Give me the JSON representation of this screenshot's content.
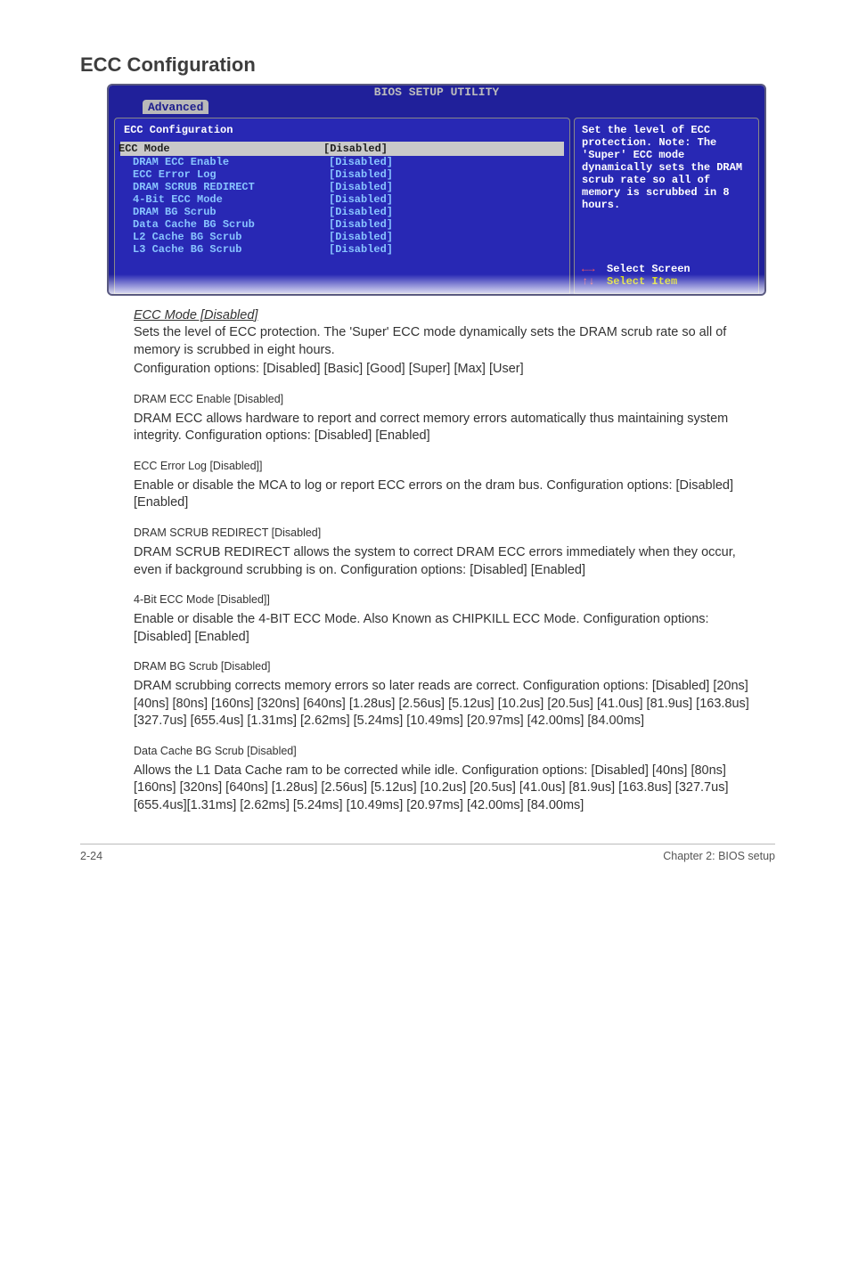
{
  "section_title": "ECC Configuration",
  "bios": {
    "titlebar": "BIOS SETUP UTILITY",
    "tab": "Advanced",
    "left_header": "ECC Configuration",
    "selected": {
      "label": "ECC Mode",
      "value": "[Disabled]"
    },
    "rows": [
      {
        "label": "DRAM ECC Enable",
        "value": "[Disabled]"
      },
      {
        "label": "ECC Error Log",
        "value": "[Disabled]"
      },
      {
        "label": "DRAM SCRUB REDIRECT",
        "value": "[Disabled]"
      },
      {
        "label": "4-Bit ECC Mode",
        "value": "[Disabled]"
      },
      {
        "label": "DRAM BG Scrub",
        "value": "[Disabled]"
      },
      {
        "label": "Data Cache BG Scrub",
        "value": "[Disabled]"
      },
      {
        "label": "L2 Cache BG Scrub",
        "value": "[Disabled]"
      },
      {
        "label": "L3 Cache BG Scrub",
        "value": "[Disabled]"
      }
    ],
    "help": "Set the level of ECC protection. Note: The 'Super' ECC mode dynamically sets the DRAM scrub rate so all of memory is scrubbed in 8 hours.",
    "nav1_arrow": "←→",
    "nav1_text": "Select Screen",
    "nav2_arrow": "↑↓",
    "nav2_text": "Select Item"
  },
  "main_item": {
    "title": "ECC Mode [Disabled]",
    "p1": "Sets the level of ECC protection. The 'Super' ECC mode dynamically sets the DRAM scrub rate so all of memory is scrubbed in eight hours.",
    "p2": "Configuration options: [Disabled] [Basic] [Good] [Super] [Max] [User]"
  },
  "subs": [
    {
      "title": "DRAM ECC Enable [Disabled]",
      "body": "DRAM ECC allows hardware to report and correct memory errors automatically thus maintaining system integrity. Configuration options: [Disabled] [Enabled]"
    },
    {
      "title": "ECC Error Log [Disabled]]",
      "body": "Enable or disable the MCA to log or report ECC errors on the dram bus. Configuration options: [Disabled] [Enabled]"
    },
    {
      "title": "DRAM SCRUB REDIRECT [Disabled]",
      "body": "DRAM SCRUB REDIRECT allows the system to correct DRAM ECC errors immediately when they occur, even if background scrubbing is on. Configuration options: [Disabled] [Enabled]"
    },
    {
      "title": "4-Bit ECC Mode [Disabled]]",
      "body": "Enable or disable the 4-BIT ECC Mode. Also Known as CHIPKILL ECC Mode. Configuration options: [Disabled] [Enabled]"
    },
    {
      "title": "DRAM BG Scrub [Disabled]",
      "body": "DRAM scrubbing corrects memory errors so later reads are correct. Configuration options: [Disabled] [20ns] [40ns] [80ns] [160ns] [320ns] [640ns] [1.28us] [2.56us] [5.12us] [10.2us] [20.5us] [41.0us] [81.9us] [163.8us] [327.7us] [655.4us] [1.31ms] [2.62ms] [5.24ms] [10.49ms] [20.97ms] [42.00ms] [84.00ms]"
    },
    {
      "title": "Data Cache BG Scrub [Disabled]",
      "body": "Allows the L1 Data Cache ram to be corrected while idle. Configuration options: [Disabled] [40ns] [80ns] [160ns] [320ns] [640ns] [1.28us] [2.56us] [5.12us] [10.2us] [20.5us] [41.0us] [81.9us] [163.8us] [327.7us] [655.4us][1.31ms] [2.62ms] [5.24ms] [10.49ms] [20.97ms] [42.00ms] [84.00ms]"
    }
  ],
  "footer": {
    "left": "2-24",
    "right": "Chapter 2: BIOS setup"
  }
}
